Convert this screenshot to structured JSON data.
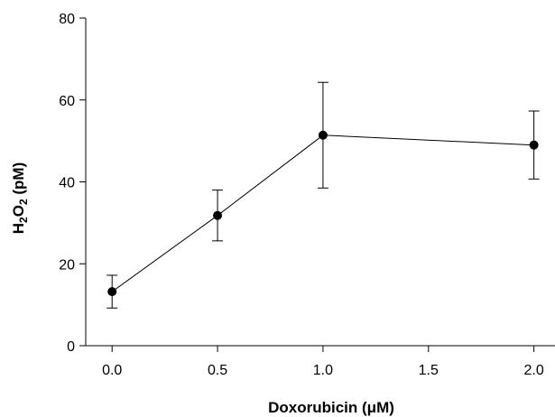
{
  "chart_data": {
    "type": "line",
    "xlabel": "Doxorubicin (μM)",
    "ylabel": {
      "parts": [
        {
          "text": "H",
          "sub": false
        },
        {
          "text": "2",
          "sub": true
        },
        {
          "text": "O",
          "sub": false
        },
        {
          "text": "2",
          "sub": true
        },
        {
          "text": " (pM)",
          "sub": false
        }
      ]
    },
    "xlim": [
      -0.125,
      2.1
    ],
    "ylim": [
      0,
      80
    ],
    "x_ticks": [
      0.0,
      0.5,
      1.0,
      1.5,
      2.0
    ],
    "x_tick_labels": [
      "0.0",
      "0.5",
      "1.0",
      "1.5",
      "2.0"
    ],
    "y_ticks": [
      0,
      20,
      40,
      60,
      80
    ],
    "y_tick_labels": [
      "0",
      "20",
      "40",
      "60",
      "80"
    ],
    "grid": false,
    "legend": "none",
    "colors": {
      "line": "#000000",
      "marker": "#000000",
      "axis": "#000000"
    },
    "series": [
      {
        "x": [
          0.0,
          0.5,
          1.0,
          2.0
        ],
        "y": [
          13.2,
          31.8,
          51.4,
          49.0
        ],
        "error": [
          4.0,
          6.2,
          12.9,
          8.3
        ]
      }
    ]
  }
}
